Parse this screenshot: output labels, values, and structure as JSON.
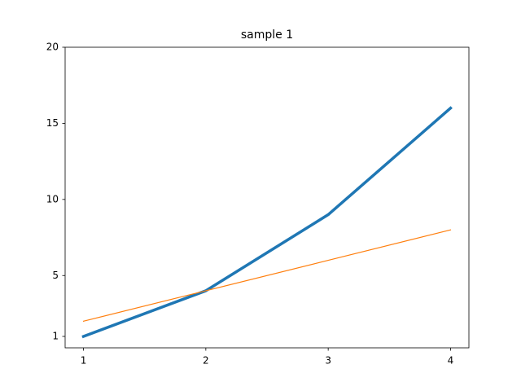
{
  "chart_data": {
    "type": "line",
    "title": "sample 1",
    "x": [
      1,
      2,
      3,
      4
    ],
    "series": [
      {
        "color": "#1f77b4",
        "linewidth": 3.5,
        "values": [
          1,
          4,
          9,
          16
        ]
      },
      {
        "color": "#ff7f0e",
        "linewidth": 1.2,
        "values": [
          2,
          4,
          6,
          8
        ]
      }
    ],
    "xlim": [
      0.85,
      4.15
    ],
    "xticks": [
      1,
      2,
      3,
      4
    ],
    "ylim": [
      0.25,
      20
    ],
    "yticks": [
      1,
      5,
      10,
      15,
      20
    ]
  }
}
